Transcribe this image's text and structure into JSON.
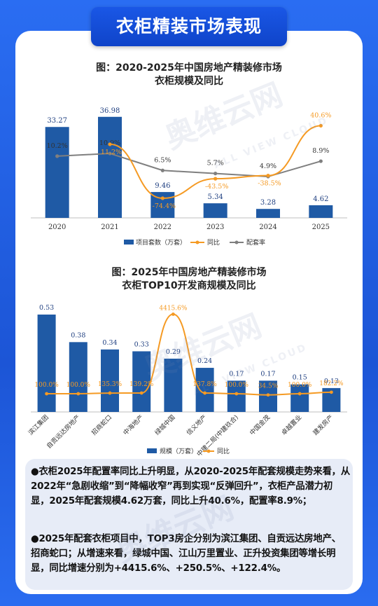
{
  "page": {
    "header": "衣柜精装市场表现",
    "chart1_title": "图：2020-2025年中国房地产精装修市场",
    "chart1_subtitle": "衣柜规模及同比",
    "chart2_title": "图：2025年中国房地产精装修市场",
    "chart2_subtitle": "衣柜TOP10开发商规模及同比",
    "notes": [
      "●衣柜2025年配置率同比上升明显，从2020-2025年配套规模走势来看，从2022年“急剧收缩”到“降幅收窄”再到实现“反弹回升”，衣柜产品潜力初显，2025年配套规模4.62万套，同比上升40.6%，配置率8.9%；",
      "●2025年配套衣柜项目中，TOP3房企分别为滨江集团、自贡远达房地产、招商蛇口；从增速来看，绿城中国、江山万里置业、正升投资集团等增长明显，同比增速分别为+4415.6%、+250.5%、+122.4%。"
    ],
    "watermark": "奥维云网",
    "watermark_en": "ALL VIEW CLOUD",
    "colors": {
      "bar": "#1f5aa5",
      "yoy": "#f59a23",
      "rate": "#7f7f7f"
    }
  },
  "chart_data": [
    {
      "type": "bar",
      "categories": [
        "2020",
        "2021",
        "2022",
        "2023",
        "2024",
        "2025"
      ],
      "series": [
        {
          "name": "项目套数（万套）",
          "kind": "bar",
          "values": [
            33.27,
            36.98,
            9.46,
            5.34,
            3.28,
            4.62
          ],
          "labels": [
            "33.27",
            "36.98",
            "9.46",
            "5.34",
            "3.28",
            "4.62"
          ]
        },
        {
          "name": "同比",
          "kind": "line",
          "values": [
            null,
            11.2,
            -74.4,
            -43.5,
            -38.5,
            40.6
          ],
          "labels": [
            "",
            "11.2%",
            "-74.4%",
            "-43.5%",
            "-38.5%",
            "40.6%"
          ]
        },
        {
          "name": "配套率",
          "kind": "line",
          "values": [
            10.2,
            10.9,
            6.5,
            5.7,
            4.9,
            8.9
          ],
          "labels": [
            "10.2%",
            "10.9%",
            "6.5%",
            "5.7%",
            "4.9%",
            "8.9%"
          ]
        }
      ],
      "legend": "bottom"
    },
    {
      "type": "bar",
      "categories": [
        "滨江集团",
        "自贡远达房地产",
        "招商蛇口",
        "中海地产",
        "绿城中国",
        "信义地产",
        "中建二局(中建玖合)",
        "中国金茂",
        "卓越置业",
        "建发房产"
      ],
      "series": [
        {
          "name": "规模（万套）",
          "kind": "bar",
          "values": [
            0.53,
            0.38,
            0.34,
            0.33,
            0.29,
            0.24,
            0.17,
            0.17,
            0.15,
            0.13
          ],
          "labels": [
            "0.53",
            "0.38",
            "0.34",
            "0.33",
            "0.29",
            "0.24",
            "0.17",
            "0.17",
            "0.15",
            "0.13"
          ]
        },
        {
          "name": "同比",
          "kind": "line",
          "values": [
            100.0,
            100.0,
            135.3,
            139.2,
            4415.6,
            137.8,
            100.0,
            34.5,
            100.0,
            182.2
          ],
          "labels": [
            "100.0%",
            "100.0%",
            "135.3%",
            "139.2%",
            "4415.6%",
            "137.8%",
            "100.0%",
            "34.5%",
            "100.0%",
            "182.2%"
          ]
        }
      ],
      "legend": "bottom"
    }
  ]
}
